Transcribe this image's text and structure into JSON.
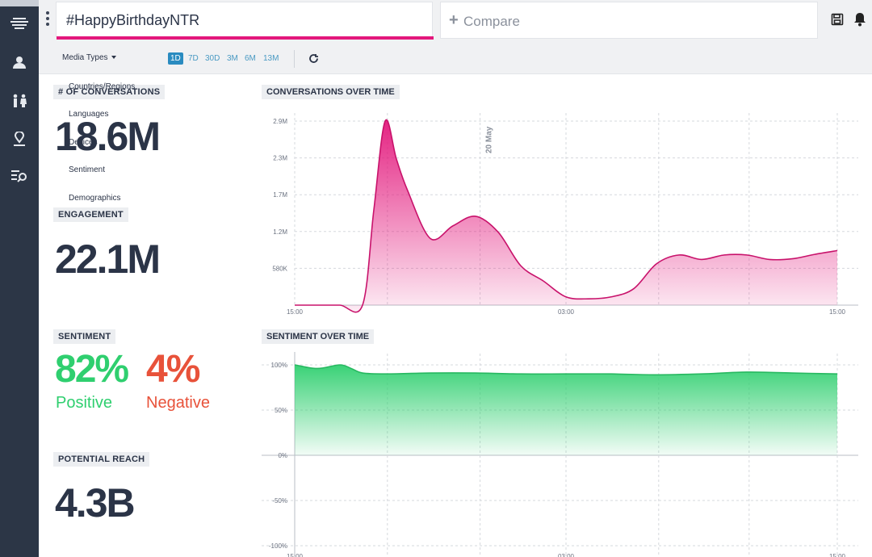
{
  "header": {
    "search_value": "#HappyBirthdayNTR",
    "compare_label": "Compare"
  },
  "sidebar": {
    "items": [
      {
        "icon": "stream-icon"
      },
      {
        "icon": "user-icon"
      },
      {
        "icon": "demographics-icon"
      },
      {
        "icon": "location-icon"
      },
      {
        "icon": "search-list-icon"
      }
    ]
  },
  "toolbar": {
    "media_types_label": "Media Types",
    "ranges": [
      "1D",
      "7D",
      "30D",
      "3M",
      "6M",
      "13M"
    ],
    "active_range": "1D"
  },
  "menu": {
    "items": [
      "Countries/Regions",
      "Languages",
      "Devices",
      "Sentiment",
      "Demographics"
    ]
  },
  "metrics": {
    "conversations": {
      "label": "# OF CONVERSATIONS",
      "value": "18.6M"
    },
    "engagement": {
      "label": "ENGAGEMENT",
      "value": "22.1M"
    },
    "sentiment": {
      "label": "SENTIMENT",
      "positive_pct": "82%",
      "positive_label": "Positive",
      "negative_pct": "4%",
      "negative_label": "Negative"
    },
    "reach": {
      "label": "POTENTIAL REACH",
      "value": "4.3B"
    }
  },
  "colors": {
    "accent_pink": "#e3187c",
    "positive_green": "#2fcf6f",
    "negative_red": "#e8523a",
    "sidebar_bg": "#2c3646"
  },
  "chart_data": [
    {
      "type": "area",
      "title": "CONVERSATIONS OVER TIME",
      "y_ticks": [
        "2.9M",
        "2.3M",
        "1.7M",
        "1.2M",
        "580K"
      ],
      "x_ticks": [
        "15:00",
        "03:00",
        "15:00"
      ],
      "annotation": "20 May",
      "ylim": [
        0,
        2900000
      ],
      "x_hours": [
        0,
        1,
        2,
        3,
        3.5,
        4,
        4.5,
        5,
        6,
        7,
        8,
        9,
        10,
        11,
        12,
        13,
        14,
        15,
        16,
        17,
        18,
        19,
        20,
        21,
        22,
        23,
        24
      ],
      "values": [
        0,
        0,
        0,
        0,
        1500000,
        2900000,
        2300000,
        1800000,
        1050000,
        1250000,
        1400000,
        1150000,
        620000,
        380000,
        130000,
        100000,
        130000,
        260000,
        650000,
        790000,
        720000,
        790000,
        790000,
        720000,
        730000,
        800000,
        860000
      ]
    },
    {
      "type": "area",
      "title": "SENTIMENT OVER TIME",
      "y_ticks": [
        "100%",
        "50%",
        "0%",
        "-50%",
        "-100%"
      ],
      "x_ticks": [
        "15:00",
        "03:00",
        "15:00"
      ],
      "ylim": [
        -100,
        100
      ],
      "x_hours": [
        0,
        1,
        2,
        2.5,
        3,
        4,
        6,
        8,
        10,
        12,
        14,
        16,
        18,
        20,
        22,
        24
      ],
      "values": [
        100,
        96,
        100,
        96,
        91,
        90,
        91,
        91,
        90,
        90,
        90,
        89,
        90,
        92,
        91,
        90
      ]
    }
  ]
}
